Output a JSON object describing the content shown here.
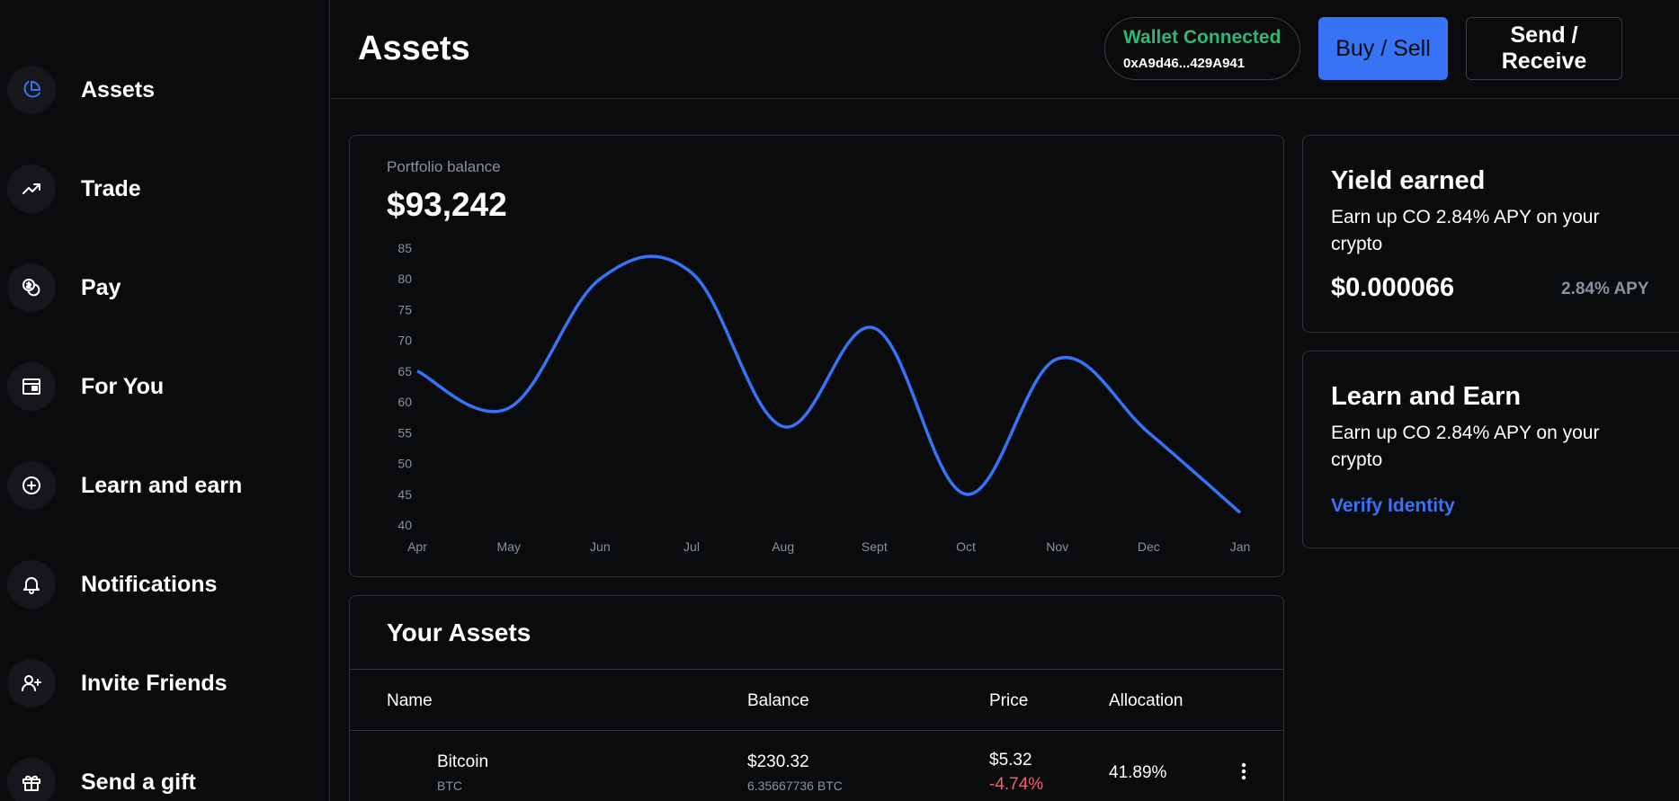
{
  "sidebar": {
    "items": [
      {
        "label": "Assets",
        "icon": "pie-chart-icon",
        "active": true
      },
      {
        "label": "Trade",
        "icon": "trending-up-icon"
      },
      {
        "label": "Pay",
        "icon": "coins-icon"
      },
      {
        "label": "For You",
        "icon": "browser-icon"
      },
      {
        "label": "Learn and earn",
        "icon": "plus-circle-icon"
      },
      {
        "label": "Notifications",
        "icon": "bell-icon"
      },
      {
        "label": "Invite Friends",
        "icon": "user-plus-icon"
      },
      {
        "label": "Send a gift",
        "icon": "gift-icon"
      }
    ]
  },
  "header": {
    "title": "Assets",
    "wallet": {
      "status": "Wallet Connected",
      "address": "0xA9d46...429A941"
    },
    "buy_sell_label": "Buy / Sell",
    "send_receive_label": "Send / Receive"
  },
  "portfolio": {
    "label": "Portfolio balance",
    "value": "$93,242"
  },
  "chart_data": {
    "type": "line",
    "title": "",
    "categories": [
      "Apr",
      "May",
      "Jun",
      "Jul",
      "Aug",
      "Sept",
      "Oct",
      "Nov",
      "Dec",
      "Jan"
    ],
    "series": [
      {
        "name": "Portfolio balance",
        "values": [
          65,
          59,
          80,
          81,
          56,
          72,
          45,
          67,
          55,
          42
        ]
      }
    ],
    "y_ticks": [
      85,
      80,
      75,
      70,
      65,
      60,
      55,
      50,
      45,
      40
    ],
    "ylim": [
      40,
      85
    ],
    "xlabel": "",
    "ylabel": "",
    "grid": false,
    "color": "#3773f5"
  },
  "assets": {
    "title": "Your Assets",
    "columns": [
      "Name",
      "Balance",
      "Price",
      "Allocation"
    ],
    "rows": [
      {
        "name": "Bitcoin",
        "symbol": "BTC",
        "balance": "$230.32",
        "balance_crypto": "6.35667736 BTC",
        "price": "$5.32",
        "change": "-4.74%",
        "allocation": "41.89%"
      }
    ]
  },
  "yield": {
    "title": "Yield earned",
    "desc": "Earn up CO 2.84% APY on your crypto",
    "value": "$0.000066",
    "apy": "2.84% APY"
  },
  "learn": {
    "title": "Learn and Earn",
    "desc": "Earn up CO 2.84% APY on your crypto",
    "link": "Verify Identity"
  },
  "colors": {
    "accent": "#3773f5",
    "success": "#2eb872",
    "negative": "#f0616d",
    "muted": "#8a919e"
  }
}
